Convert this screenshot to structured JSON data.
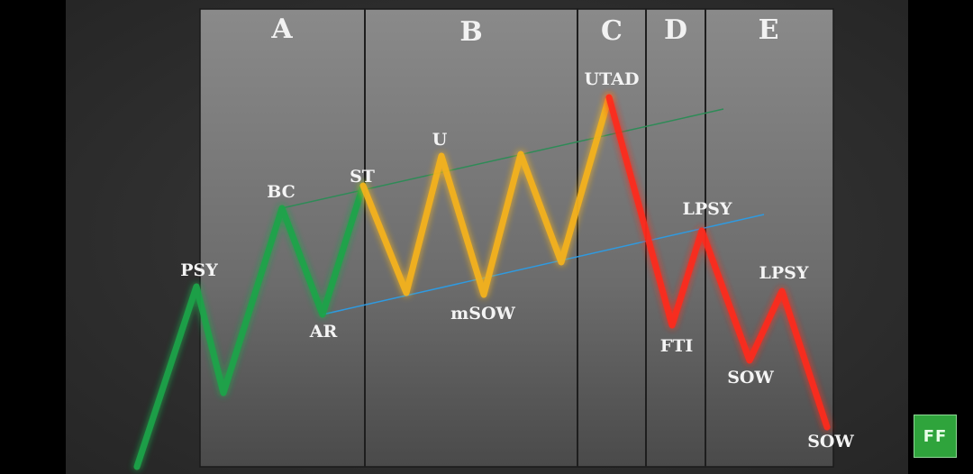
{
  "phases": [
    "A",
    "B",
    "C",
    "D",
    "E"
  ],
  "events": {
    "psy": "PSY",
    "bc": "BC",
    "ar": "AR",
    "st": "ST",
    "u": "U",
    "msow": "mSOW",
    "utad": "UTAD",
    "fti": "FTI",
    "lpsy_1": "LPSY",
    "lpsy_2": "LPSY",
    "sow_1": "SOW",
    "sow_2": "SOW"
  },
  "logo": "FF",
  "colors": {
    "page_background": "#000000",
    "outer_panel": "#2f2f2f",
    "phase_panel": "#8a8a8a",
    "accumulation_leg": "#1fa54a",
    "range_leg": "#f6b31c",
    "distribution_leg": "#ff2b1a",
    "upper_trend_line": "#2e8b57",
    "lower_trend_line": "#2f9ae0",
    "logo_badge": "#2fa43c"
  }
}
